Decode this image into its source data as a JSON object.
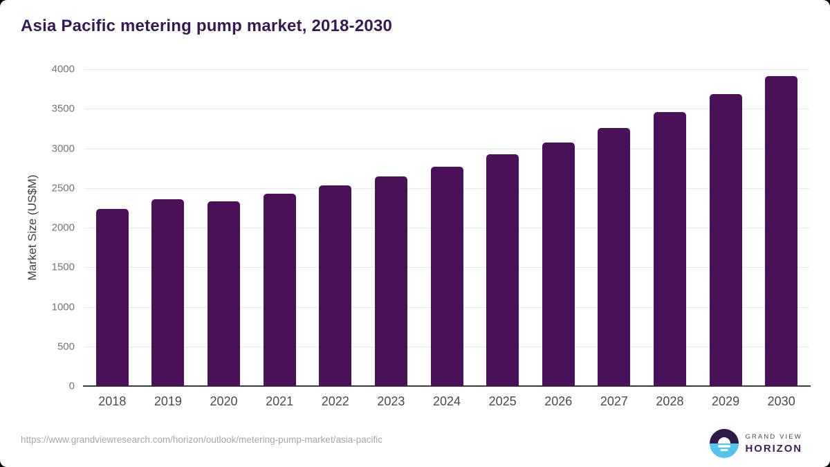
{
  "title": "Asia Pacific metering pump market, 2018-2030",
  "source_url": "https://www.grandviewresearch.com/horizon/outlook/metering-pump-market/asia-pacific",
  "branding": {
    "line1": "GRAND VIEW",
    "line2": "HORIZON",
    "logo_icon": "horizon-sun-icon"
  },
  "colors": {
    "bar": "#4a1158",
    "title": "#381a52",
    "grid": "#e8e8e8",
    "axis_line": "#3a3a3a",
    "y_tick_label": "#757575",
    "x_tick_label": "#4a4a4a",
    "url_text": "#a6a6a6",
    "logo_dark": "#2e1a47",
    "logo_blue": "#56c3ee",
    "logo_text": "#3d2157"
  },
  "chart_data": {
    "type": "bar",
    "title": "Asia Pacific metering pump market, 2018-2030",
    "xlabel": "",
    "ylabel": "Market Size (US$M)",
    "ylim": [
      0,
      4000
    ],
    "yticks": [
      0,
      500,
      1000,
      1500,
      2000,
      2500,
      3000,
      3500,
      4000
    ],
    "grid": "horizontal",
    "legend": "none",
    "categories": [
      "2018",
      "2019",
      "2020",
      "2021",
      "2022",
      "2023",
      "2024",
      "2025",
      "2026",
      "2027",
      "2028",
      "2029",
      "2030"
    ],
    "values": [
      2240,
      2360,
      2330,
      2425,
      2530,
      2650,
      2765,
      2925,
      3075,
      3260,
      3460,
      3685,
      3910
    ]
  }
}
